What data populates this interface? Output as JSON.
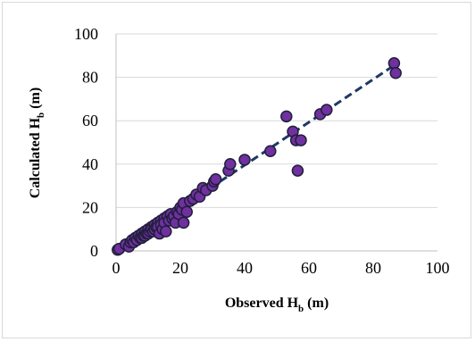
{
  "chart_data": {
    "type": "scatter",
    "xlabel": "Observed H",
    "xlabel_sub": "b",
    "xlabel_unit": " (m)",
    "ylabel": "Calculated H",
    "ylabel_sub": "b",
    "ylabel_unit": " (m)",
    "xlim": [
      0,
      100
    ],
    "ylim": [
      0,
      100
    ],
    "xticks": [
      0,
      20,
      40,
      60,
      80,
      100
    ],
    "yticks": [
      0,
      20,
      40,
      60,
      80,
      100
    ],
    "grid": "horizontal",
    "legend": "none",
    "colors": {
      "marker_fill": "#7030a0",
      "marker_edge": "#1f1f3a",
      "trendline": "#1f3864",
      "grid": "#d9d9d9"
    },
    "series": [
      {
        "x": [
          0.5,
          1,
          3,
          4,
          4.5,
          5,
          5.5,
          6,
          6.5,
          7,
          7.5,
          8,
          8,
          8.5,
          9,
          9,
          9.5,
          10,
          10,
          10.5,
          11,
          11,
          11.5,
          12,
          12,
          12.5,
          13,
          13,
          13.5,
          14,
          14,
          14.5,
          15,
          15,
          15.5,
          16,
          16.5,
          17,
          17.5,
          18,
          18.5,
          19,
          19.5,
          20,
          20.5,
          21,
          21,
          22,
          23,
          24,
          25,
          26,
          27,
          28,
          30,
          30.5,
          31,
          35,
          35.5,
          40,
          48,
          53,
          55,
          56,
          56.5,
          57.5,
          63.5,
          65.5,
          86.5,
          87
        ],
        "y": [
          0.5,
          1,
          3,
          2,
          4,
          5,
          4,
          6,
          5,
          7,
          6,
          8,
          6,
          7,
          9,
          7,
          8,
          10,
          8,
          9,
          11,
          10,
          9,
          12,
          10,
          11,
          13,
          11,
          8,
          14,
          12,
          10,
          15,
          13,
          9,
          16,
          14,
          17,
          15,
          16,
          13,
          18,
          17,
          20,
          19,
          13,
          22,
          18,
          23,
          24,
          26,
          25,
          29,
          28,
          30,
          32,
          33,
          37,
          40,
          42,
          46,
          62,
          55,
          51,
          37,
          51,
          63,
          65,
          86.5,
          82
        ]
      }
    ],
    "trendline": {
      "x": [
        0,
        87
      ],
      "y": [
        0,
        86
      ]
    }
  }
}
